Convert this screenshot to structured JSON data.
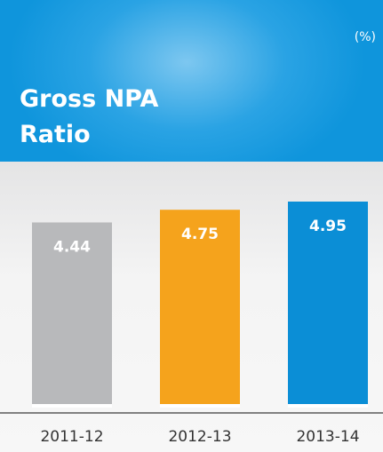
{
  "chart_data": {
    "type": "bar",
    "title": "Gross NPA Ratio",
    "unit": "(%)",
    "categories": [
      "2011-12",
      "2012-13",
      "2013-14"
    ],
    "values": [
      4.44,
      4.75,
      4.95
    ],
    "colors": [
      "#b8b9bb",
      "#f5a31c",
      "#0b8ed6"
    ]
  }
}
